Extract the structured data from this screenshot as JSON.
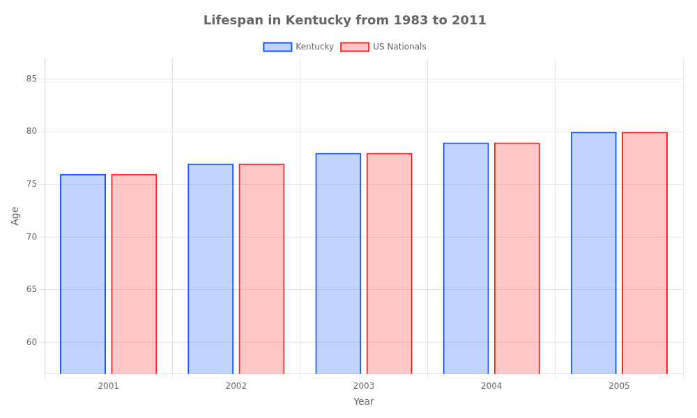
{
  "chart_data": {
    "type": "bar",
    "title": "Lifespan in Kentucky from 1983 to 2011",
    "x_label": "Year",
    "y_label": "Age",
    "categories": [
      "2001",
      "2002",
      "2003",
      "2004",
      "2005"
    ],
    "series": [
      {
        "name": "Kentucky",
        "color": "#1155ff",
        "values": [
          76,
          77,
          78,
          79,
          80
        ]
      },
      {
        "name": "US Nationals",
        "color": "#ff2222",
        "values": [
          76,
          77,
          78,
          79,
          80
        ]
      }
    ],
    "ylim": [
      57,
      87
    ],
    "yticks": [
      60,
      65,
      70,
      75,
      80,
      85
    ],
    "grid": true,
    "legend": "top"
  }
}
